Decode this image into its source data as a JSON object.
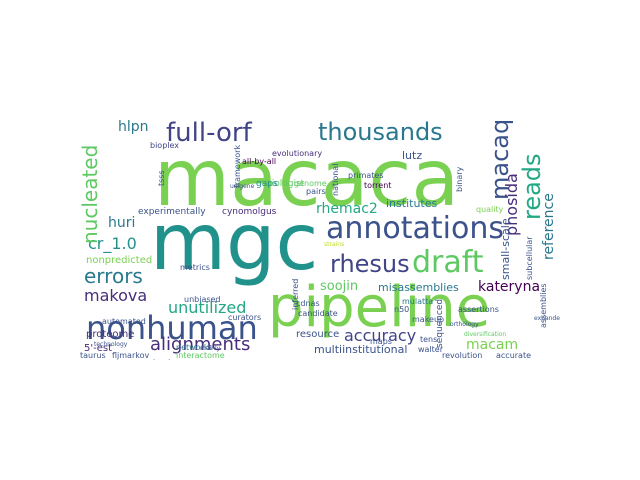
{
  "palette": {
    "green_light": "#7ad151",
    "green": "#5ec962",
    "teal": "#21918c",
    "teal_dark": "#2a788e",
    "blue": "#3b528b",
    "blue_dark": "#414487",
    "purple": "#472d7b",
    "purple_dark": "#440154",
    "aqua": "#22a884",
    "lime": "#bddf26"
  },
  "words": [
    {
      "text": "macaca"
    },
    {
      "text": "mgc"
    },
    {
      "text": "pipeline"
    },
    {
      "text": "nonhuman"
    },
    {
      "text": "annotations"
    },
    {
      "text": "draft"
    },
    {
      "text": "full-orf"
    },
    {
      "text": "thousands"
    },
    {
      "text": "rhesus"
    },
    {
      "text": "errors"
    },
    {
      "text": "reads"
    },
    {
      "text": "macaque"
    },
    {
      "text": "nucleated"
    },
    {
      "text": "alignments"
    },
    {
      "text": "accuracy"
    },
    {
      "text": "phosida"
    },
    {
      "text": "reference"
    },
    {
      "text": "unutilized"
    },
    {
      "text": "cr_1.0"
    },
    {
      "text": "makova"
    },
    {
      "text": "kateryna"
    },
    {
      "text": "huri"
    },
    {
      "text": "hlpn"
    },
    {
      "text": "rhemac2"
    },
    {
      "text": "soojin"
    },
    {
      "text": "macam"
    },
    {
      "text": "misassemblies"
    },
    {
      "text": "small-scale"
    },
    {
      "text": "multiinstitutional"
    },
    {
      "text": "institutes"
    },
    {
      "text": "lutz"
    },
    {
      "text": "resource"
    },
    {
      "text": "proteome"
    },
    {
      "text": "nonpredicted"
    },
    {
      "text": "5'-est"
    },
    {
      "text": "cynomolgus"
    },
    {
      "text": "experimentally"
    },
    {
      "text": "biologist"
    },
    {
      "text": "gaps"
    },
    {
      "text": "evolutionary"
    },
    {
      "text": "all-by-all"
    },
    {
      "text": "primates"
    },
    {
      "text": "torrent"
    },
    {
      "text": "framework"
    },
    {
      "text": "unbiased"
    },
    {
      "text": "metrics"
    },
    {
      "text": "networks"
    },
    {
      "text": "curators"
    },
    {
      "text": "sequenced"
    },
    {
      "text": "mulatta"
    },
    {
      "text": "walter"
    },
    {
      "text": "revolution"
    },
    {
      "text": "accurate"
    },
    {
      "text": "taurus"
    },
    {
      "text": "fljmarkov"
    },
    {
      "text": "interactome"
    },
    {
      "text": "makeup"
    },
    {
      "text": "n50"
    },
    {
      "text": "automated"
    },
    {
      "text": "candidate"
    },
    {
      "text": "cdnas"
    },
    {
      "text": "pairs"
    },
    {
      "text": "genome"
    },
    {
      "text": "maps"
    },
    {
      "text": "tens"
    },
    {
      "text": "inferred"
    },
    {
      "text": "national"
    },
    {
      "text": "binary"
    },
    {
      "text": "quality"
    },
    {
      "text": "assertions"
    },
    {
      "text": "subcellular"
    },
    {
      "text": "assemblies"
    },
    {
      "text": "tsss"
    },
    {
      "text": "bioplex"
    },
    {
      "text": "orthology"
    },
    {
      "text": "mainly"
    },
    {
      "text": "selection"
    },
    {
      "text": "cloned"
    },
    {
      "text": "expanded"
    },
    {
      "text": "technology"
    },
    {
      "text": "strains"
    },
    {
      "text": "unigene"
    },
    {
      "text": "diversification"
    }
  ]
}
